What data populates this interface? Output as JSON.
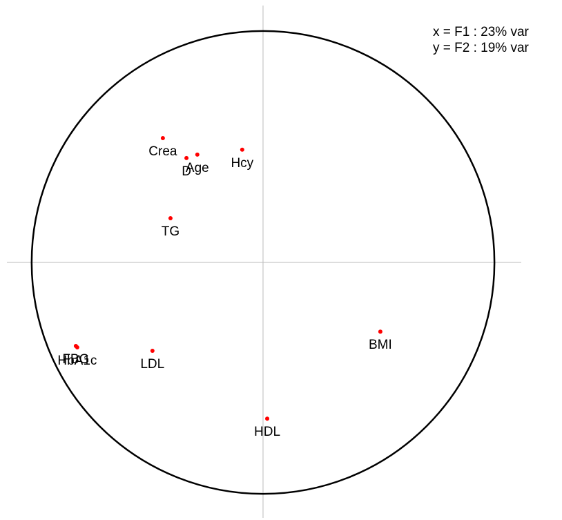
{
  "chart_data": {
    "type": "scatter",
    "annotations": [
      "x = F1 : 23% var",
      "y = F2 : 19% var"
    ],
    "series": [
      {
        "color": "#ff0000",
        "labels": [
          "Crea",
          "D",
          "Age",
          "Hcy",
          "TG",
          "FBG",
          "HbA1c",
          "LDL",
          "BMI",
          "HDL"
        ],
        "x": [
          -0.433,
          -0.331,
          -0.284,
          -0.09,
          -0.4,
          -0.809,
          -0.803,
          -0.478,
          0.507,
          0.018
        ],
        "values": [
          0.537,
          0.451,
          0.466,
          0.487,
          0.191,
          -0.361,
          -0.367,
          -0.382,
          -0.299,
          -0.675
        ]
      }
    ],
    "xlim": [
      -1.107,
      1.116
    ],
    "ylim": [
      -1.104,
      1.11
    ]
  }
}
